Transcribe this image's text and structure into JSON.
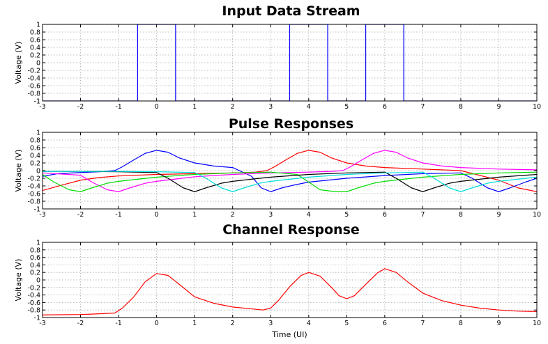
{
  "chart_data": [
    {
      "type": "line",
      "title": "Input Data Stream",
      "xlabel": "",
      "ylabel": "Voltage (V)",
      "xlim": [
        -3,
        10
      ],
      "ylim": [
        -1,
        1
      ],
      "xticks": [
        -3,
        -2,
        -1,
        0,
        1,
        2,
        3,
        4,
        5,
        6,
        7,
        8,
        9,
        10
      ],
      "yticks": [
        -1,
        -0.8,
        -0.6,
        -0.4,
        -0.2,
        0,
        0.2,
        0.4,
        0.6,
        0.8,
        1
      ],
      "grid": true,
      "series": [
        {
          "color": "#0000ff",
          "x": [
            -3,
            -0.5,
            -0.5,
            0.5,
            0.5,
            3.5,
            3.5,
            4.5,
            4.5,
            5.5,
            5.5,
            6.5,
            6.5,
            10
          ],
          "y": [
            -1,
            -1,
            1,
            1,
            -1,
            -1,
            1,
            1,
            -1,
            -1,
            1,
            1,
            -1,
            -1
          ]
        }
      ]
    },
    {
      "type": "line",
      "title": "Pulse Responses",
      "xlabel": "",
      "ylabel": "Voltage (V)",
      "xlim": [
        -3,
        10
      ],
      "ylim": [
        -1,
        1
      ],
      "xticks": [
        -3,
        -2,
        -1,
        0,
        1,
        2,
        3,
        4,
        5,
        6,
        7,
        8,
        9,
        10
      ],
      "yticks": [
        -1,
        -0.8,
        -0.6,
        -0.4,
        -0.2,
        0,
        0.2,
        0.4,
        0.6,
        0.8,
        1
      ],
      "grid": true,
      "series": [
        {
          "color": "#ff0000",
          "x": [
            -3.4,
            -3.0,
            -2.5,
            -2.0,
            -1.5,
            -1.0,
            0.0,
            1.0,
            2.0,
            2.6,
            2.9,
            3.1,
            3.4,
            3.7,
            4.0,
            4.3,
            4.6,
            5.0,
            5.5,
            6.0,
            7.0,
            8.0,
            9.0,
            9.5,
            10.0
          ],
          "y": [
            -0.45,
            -0.52,
            -0.38,
            -0.25,
            -0.18,
            -0.14,
            -0.1,
            -0.08,
            -0.06,
            -0.04,
            0.0,
            0.1,
            0.28,
            0.45,
            0.53,
            0.48,
            0.33,
            0.2,
            0.12,
            0.08,
            0.04,
            0.0,
            -0.25,
            -0.45,
            -0.55
          ]
        },
        {
          "color": "#0000ff",
          "x": [
            -3.0,
            -2.6,
            -2.0,
            -1.5,
            -1.1,
            -0.9,
            -0.6,
            -0.3,
            0.0,
            0.3,
            0.6,
            1.0,
            1.5,
            2.0,
            2.5,
            2.75,
            3.0,
            3.3,
            3.6,
            4.0,
            5.0,
            6.0,
            7.0,
            8.0,
            8.3,
            8.7,
            9.0,
            9.3,
            9.7,
            10.0
          ],
          "y": [
            -0.15,
            -0.08,
            -0.05,
            -0.03,
            0.0,
            0.1,
            0.28,
            0.45,
            0.53,
            0.48,
            0.33,
            0.2,
            0.12,
            0.08,
            -0.15,
            -0.45,
            -0.55,
            -0.45,
            -0.38,
            -0.3,
            -0.2,
            -0.13,
            -0.08,
            -0.06,
            -0.2,
            -0.45,
            -0.55,
            -0.45,
            -0.3,
            -0.2
          ]
        },
        {
          "color": "#ff00ff",
          "x": [
            -3.0,
            -2.0,
            -1.7,
            -1.3,
            -1.0,
            -0.7,
            -0.3,
            0.0,
            0.5,
            1.0,
            2.0,
            3.0,
            4.0,
            4.6,
            4.9,
            5.1,
            5.4,
            5.7,
            6.0,
            6.3,
            6.6,
            7.0,
            7.5,
            8.0,
            9.0,
            10.0
          ],
          "y": [
            -0.06,
            -0.12,
            -0.3,
            -0.5,
            -0.55,
            -0.45,
            -0.33,
            -0.28,
            -0.22,
            -0.16,
            -0.1,
            -0.06,
            -0.04,
            -0.02,
            0.0,
            0.1,
            0.28,
            0.45,
            0.53,
            0.48,
            0.33,
            0.2,
            0.12,
            0.08,
            0.04,
            0.02
          ]
        },
        {
          "color": "#00dd00",
          "x": [
            -3.0,
            -2.7,
            -2.3,
            -2.0,
            -1.7,
            -1.3,
            -1.0,
            0.0,
            1.0,
            2.0,
            3.0,
            3.7,
            4.0,
            4.3,
            4.7,
            5.0,
            5.3,
            5.7,
            6.0,
            7.0,
            8.0,
            9.0,
            10.0
          ],
          "y": [
            -0.1,
            -0.3,
            -0.5,
            -0.55,
            -0.45,
            -0.33,
            -0.28,
            -0.17,
            -0.1,
            -0.06,
            -0.04,
            -0.1,
            -0.3,
            -0.5,
            -0.55,
            -0.55,
            -0.45,
            -0.33,
            -0.28,
            -0.17,
            -0.1,
            -0.06,
            -0.04
          ]
        },
        {
          "color": "#000000",
          "x": [
            -3.0,
            -2.0,
            -1.0,
            0.0,
            0.3,
            0.7,
            1.0,
            1.3,
            1.7,
            2.0,
            3.0,
            4.0,
            5.0,
            6.0,
            6.3,
            6.7,
            7.0,
            7.3,
            7.7,
            8.0,
            9.0,
            10.0
          ],
          "y": [
            -0.02,
            -0.02,
            -0.03,
            -0.05,
            -0.2,
            -0.45,
            -0.55,
            -0.45,
            -0.33,
            -0.28,
            -0.17,
            -0.1,
            -0.06,
            -0.04,
            -0.2,
            -0.45,
            -0.55,
            -0.45,
            -0.33,
            -0.28,
            -0.17,
            -0.1
          ]
        },
        {
          "color": "#00dddd",
          "x": [
            -3.0,
            -2.0,
            -1.0,
            0.0,
            1.0,
            1.3,
            1.7,
            2.0,
            2.3,
            2.7,
            3.0,
            4.0,
            5.0,
            6.0,
            7.0,
            7.3,
            7.7,
            8.0,
            8.3,
            8.7,
            9.0,
            10.0
          ],
          "y": [
            -0.02,
            -0.02,
            -0.02,
            -0.03,
            -0.05,
            -0.2,
            -0.45,
            -0.55,
            -0.45,
            -0.33,
            -0.28,
            -0.17,
            -0.1,
            -0.06,
            -0.04,
            -0.2,
            -0.45,
            -0.55,
            -0.45,
            -0.33,
            -0.28,
            -0.17
          ]
        }
      ]
    },
    {
      "type": "line",
      "title": "Channel Response",
      "xlabel": "Time (UI)",
      "ylabel": "Voltage (V)",
      "xlim": [
        -3,
        10
      ],
      "ylim": [
        -1,
        1
      ],
      "xticks": [
        -3,
        -2,
        -1,
        0,
        1,
        2,
        3,
        4,
        5,
        6,
        7,
        8,
        9,
        10
      ],
      "yticks": [
        -1,
        -0.8,
        -0.6,
        -0.4,
        -0.2,
        0,
        0.2,
        0.4,
        0.6,
        0.8,
        1
      ],
      "grid": true,
      "series": [
        {
          "color": "#ff0000",
          "x": [
            -3.0,
            -2.0,
            -1.5,
            -1.1,
            -0.9,
            -0.6,
            -0.3,
            0.0,
            0.3,
            0.6,
            1.0,
            1.5,
            2.0,
            2.5,
            2.8,
            3.0,
            3.2,
            3.5,
            3.8,
            4.0,
            4.3,
            4.6,
            4.8,
            5.0,
            5.2,
            5.5,
            5.8,
            6.0,
            6.3,
            6.6,
            7.0,
            7.5,
            8.0,
            8.5,
            9.0,
            9.5,
            10.0
          ],
          "y": [
            -0.93,
            -0.92,
            -0.9,
            -0.88,
            -0.75,
            -0.45,
            -0.05,
            0.17,
            0.12,
            -0.12,
            -0.45,
            -0.62,
            -0.72,
            -0.77,
            -0.8,
            -0.75,
            -0.55,
            -0.18,
            0.12,
            0.2,
            0.1,
            -0.2,
            -0.42,
            -0.5,
            -0.42,
            -0.12,
            0.18,
            0.3,
            0.2,
            -0.05,
            -0.35,
            -0.55,
            -0.67,
            -0.75,
            -0.8,
            -0.83,
            -0.84
          ]
        }
      ]
    }
  ]
}
